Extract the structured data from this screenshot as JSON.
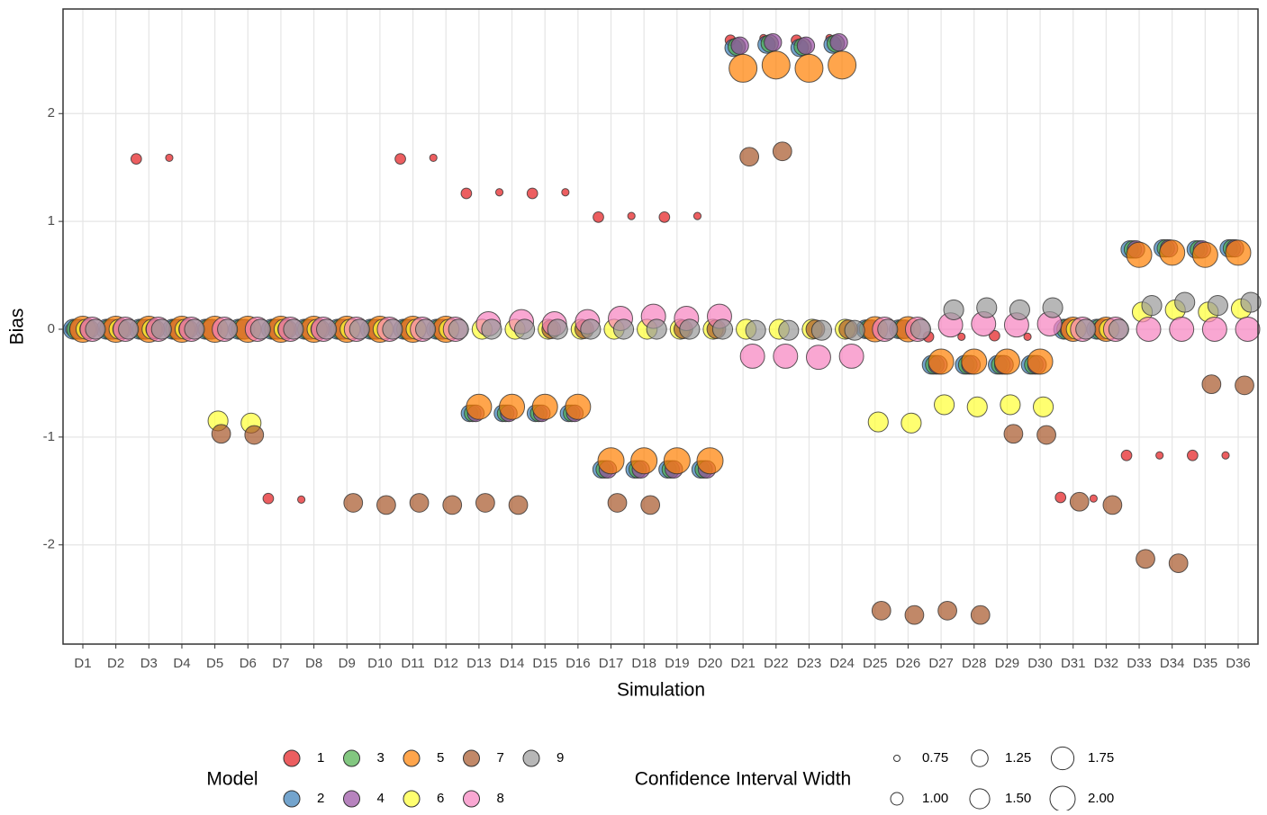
{
  "chart_data": {
    "type": "bubble",
    "x_label": "Simulation",
    "y_label": "Bias",
    "categories": [
      "D1",
      "D2",
      "D3",
      "D4",
      "D5",
      "D6",
      "D7",
      "D8",
      "D9",
      "D10",
      "D11",
      "D12",
      "D13",
      "D14",
      "D15",
      "D16",
      "D17",
      "D18",
      "D19",
      "D20",
      "D21",
      "D22",
      "D23",
      "D24",
      "D25",
      "D26",
      "D27",
      "D28",
      "D29",
      "D30",
      "D31",
      "D32",
      "D33",
      "D34",
      "D35",
      "D36"
    ],
    "ylim": [
      -2.92,
      2.97
    ],
    "yticks": [
      -2,
      -1,
      0,
      1,
      2
    ],
    "grid": true,
    "legend_position": "bottom",
    "color_legend_title": "Model",
    "size_legend_title": "Confidence Interval Width",
    "size_breaks": [
      0.75,
      {
        "value": 1.0,
        "label": "1.00"
      },
      1.25,
      {
        "value": 1.5,
        "label": "1.50"
      },
      1.75,
      {
        "value": 2.0,
        "label": "2.00"
      }
    ],
    "series": [
      {
        "name": "1",
        "color": "#E41A1C",
        "values": [
          0,
          0,
          1.58,
          1.59,
          0,
          0,
          -1.57,
          -1.58,
          0,
          0,
          1.58,
          1.59,
          1.26,
          1.27,
          1.26,
          1.27,
          1.04,
          1.05,
          1.04,
          1.05,
          2.68,
          2.7,
          2.68,
          2.7,
          0,
          0,
          -0.07,
          -0.07,
          -0.06,
          -0.07,
          -1.56,
          -1.57,
          -1.17,
          -1.17,
          -1.17,
          -1.17
        ],
        "sizes": [
          0.9,
          0.78,
          0.9,
          0.78,
          0.9,
          0.78,
          0.9,
          0.78,
          0.9,
          0.78,
          0.9,
          0.78,
          0.9,
          0.78,
          0.9,
          0.78,
          0.9,
          0.78,
          0.9,
          0.78,
          0.9,
          0.78,
          0.9,
          0.78,
          0.9,
          0.78,
          0.9,
          0.78,
          0.9,
          0.78,
          0.9,
          0.78,
          0.9,
          0.78,
          0.9,
          0.78
        ]
      },
      {
        "name": "2",
        "color": "#377EB8",
        "values": [
          0,
          0,
          0,
          0,
          0,
          0,
          0,
          0,
          0,
          0,
          0,
          0,
          -0.78,
          -0.78,
          -0.78,
          -0.78,
          -1.3,
          -1.3,
          -1.3,
          -1.3,
          2.61,
          2.64,
          2.61,
          2.64,
          0,
          0,
          -0.33,
          -0.33,
          -0.33,
          -0.33,
          0,
          0,
          0.74,
          0.75,
          0.74,
          0.75
        ],
        "sizes": [
          1.5,
          1.5,
          1.5,
          1.5,
          1.5,
          1.5,
          1.5,
          1.5,
          1.5,
          1.5,
          1.5,
          1.5,
          1.25,
          1.25,
          1.25,
          1.25,
          1.3,
          1.3,
          1.3,
          1.3,
          1.3,
          1.3,
          1.3,
          1.3,
          1.4,
          1.4,
          1.4,
          1.4,
          1.4,
          1.4,
          1.5,
          1.5,
          1.3,
          1.3,
          1.3,
          1.3
        ]
      },
      {
        "name": "3",
        "color": "#4DAF4A",
        "values": [
          0,
          0,
          0,
          0,
          0,
          0,
          0,
          0,
          0,
          0,
          0,
          0,
          -0.78,
          -0.78,
          -0.78,
          -0.78,
          -1.3,
          -1.3,
          -1.3,
          -1.3,
          2.62,
          2.65,
          2.62,
          2.65,
          0,
          0,
          -0.33,
          -0.33,
          -0.33,
          -0.33,
          0,
          0,
          0.74,
          0.75,
          0.74,
          0.75
        ],
        "sizes": [
          1.5,
          1.5,
          1.5,
          1.5,
          1.5,
          1.5,
          1.5,
          1.5,
          1.5,
          1.5,
          1.5,
          1.5,
          1.25,
          1.25,
          1.25,
          1.25,
          1.3,
          1.3,
          1.3,
          1.3,
          1.3,
          1.3,
          1.3,
          1.3,
          1.4,
          1.4,
          1.4,
          1.4,
          1.4,
          1.4,
          1.5,
          1.5,
          1.3,
          1.3,
          1.3,
          1.3
        ]
      },
      {
        "name": "4",
        "color": "#984EA3",
        "values": [
          0,
          0,
          0,
          0,
          0,
          0,
          0,
          0,
          0,
          0,
          0,
          0,
          -0.78,
          -0.78,
          -0.78,
          -0.78,
          -1.3,
          -1.3,
          -1.3,
          -1.3,
          2.63,
          2.66,
          2.63,
          2.66,
          0,
          0,
          -0.33,
          -0.33,
          -0.33,
          -0.33,
          0,
          0,
          0.74,
          0.75,
          0.74,
          0.75
        ],
        "sizes": [
          1.5,
          1.5,
          1.5,
          1.5,
          1.5,
          1.5,
          1.5,
          1.5,
          1.5,
          1.5,
          1.5,
          1.5,
          1.25,
          1.25,
          1.25,
          1.25,
          1.3,
          1.3,
          1.3,
          1.3,
          1.3,
          1.3,
          1.3,
          1.3,
          1.4,
          1.4,
          1.4,
          1.4,
          1.4,
          1.4,
          1.5,
          1.5,
          1.3,
          1.3,
          1.3,
          1.3
        ]
      },
      {
        "name": "5",
        "color": "#FF7F00",
        "values": [
          0,
          0,
          0,
          0,
          0,
          0,
          0,
          0,
          0,
          0,
          0,
          0,
          -0.72,
          -0.72,
          -0.72,
          -0.72,
          -1.22,
          -1.22,
          -1.22,
          -1.22,
          2.42,
          2.45,
          2.42,
          2.45,
          0,
          0,
          -0.3,
          -0.3,
          -0.3,
          -0.3,
          0,
          0,
          0.69,
          0.71,
          0.69,
          0.71
        ],
        "sizes": [
          2.1,
          2.1,
          2.1,
          2.1,
          2.1,
          2.1,
          2.1,
          2.1,
          2.1,
          2.1,
          2.1,
          2.1,
          2.0,
          2.0,
          2.0,
          2.0,
          2.1,
          2.1,
          2.1,
          2.1,
          2.3,
          2.3,
          2.3,
          2.3,
          2.0,
          2.0,
          2.0,
          2.0,
          2.0,
          2.0,
          1.9,
          1.9,
          2.0,
          2.0,
          2.0,
          2.0
        ]
      },
      {
        "name": "6",
        "color": "#FFFF33",
        "values": [
          0,
          0,
          0,
          0,
          -0.85,
          -0.87,
          0,
          0,
          0,
          0,
          0,
          0,
          0,
          0,
          0,
          0,
          0,
          0,
          0,
          0,
          0,
          0,
          0,
          0,
          -0.86,
          -0.87,
          -0.7,
          -0.72,
          -0.7,
          -0.72,
          0,
          0,
          0.16,
          0.18,
          0.16,
          0.19
        ],
        "sizes": [
          1.5,
          1.5,
          1.5,
          1.5,
          1.5,
          1.5,
          1.5,
          1.5,
          1.5,
          1.5,
          1.5,
          1.5,
          1.5,
          1.5,
          1.5,
          1.5,
          1.5,
          1.5,
          1.5,
          1.5,
          1.5,
          1.5,
          1.5,
          1.5,
          1.5,
          1.5,
          1.5,
          1.5,
          1.5,
          1.5,
          1.5,
          1.5,
          1.5,
          1.5,
          1.5,
          1.5
        ]
      },
      {
        "name": "7",
        "color": "#A65628",
        "values": [
          0,
          0,
          0,
          0,
          -0.97,
          -0.98,
          0,
          0,
          -1.61,
          -1.63,
          -1.61,
          -1.63,
          -1.61,
          -1.63,
          0,
          0,
          -1.61,
          -1.63,
          0,
          0,
          1.6,
          1.65,
          0,
          0,
          -2.61,
          -2.65,
          -2.61,
          -2.65,
          -0.97,
          -0.98,
          -1.6,
          -1.63,
          -2.13,
          -2.17,
          -0.51,
          -0.52
        ],
        "sizes": [
          1.4,
          1.4,
          1.4,
          1.4,
          1.4,
          1.4,
          1.4,
          1.4,
          1.4,
          1.4,
          1.4,
          1.4,
          1.4,
          1.4,
          1.4,
          1.4,
          1.4,
          1.4,
          1.4,
          1.4,
          1.4,
          1.4,
          1.4,
          1.4,
          1.4,
          1.4,
          1.4,
          1.4,
          1.4,
          1.4,
          1.4,
          1.4,
          1.4,
          1.4,
          1.4,
          1.4
        ]
      },
      {
        "name": "8",
        "color": "#F781BF",
        "values": [
          0,
          0,
          0,
          0,
          0,
          0,
          0,
          0,
          0,
          0,
          0,
          0,
          0.05,
          0.07,
          0.05,
          0.07,
          0.1,
          0.12,
          0.1,
          0.12,
          -0.25,
          -0.25,
          -0.26,
          -0.25,
          0,
          0,
          0.04,
          0.05,
          0.04,
          0.05,
          0,
          0,
          0,
          0,
          0,
          0
        ],
        "sizes": [
          1.9,
          1.9,
          1.9,
          1.9,
          1.9,
          1.9,
          1.9,
          1.9,
          1.9,
          1.9,
          1.9,
          1.9,
          1.9,
          1.9,
          1.9,
          1.9,
          1.9,
          1.9,
          1.9,
          1.9,
          1.9,
          1.9,
          1.9,
          1.9,
          1.9,
          1.9,
          1.9,
          1.9,
          1.9,
          1.9,
          1.9,
          1.9,
          1.9,
          1.9,
          1.9,
          1.9
        ]
      },
      {
        "name": "9",
        "color": "#999999",
        "values": [
          0,
          0,
          0,
          0,
          0,
          0,
          0,
          0,
          0,
          0,
          0,
          0,
          0,
          0,
          0,
          0,
          0,
          0,
          0,
          0,
          -0.01,
          -0.01,
          -0.01,
          -0.01,
          0,
          0,
          0.18,
          0.2,
          0.18,
          0.2,
          0,
          0,
          0.22,
          0.25,
          0.22,
          0.25
        ],
        "sizes": [
          1.5,
          1.5,
          1.5,
          1.5,
          1.5,
          1.5,
          1.5,
          1.5,
          1.5,
          1.5,
          1.5,
          1.5,
          1.5,
          1.5,
          1.5,
          1.5,
          1.5,
          1.5,
          1.5,
          1.5,
          1.5,
          1.5,
          1.5,
          1.5,
          1.5,
          1.5,
          1.5,
          1.5,
          1.5,
          1.5,
          1.5,
          1.5,
          1.5,
          1.5,
          1.5,
          1.5
        ]
      }
    ]
  }
}
